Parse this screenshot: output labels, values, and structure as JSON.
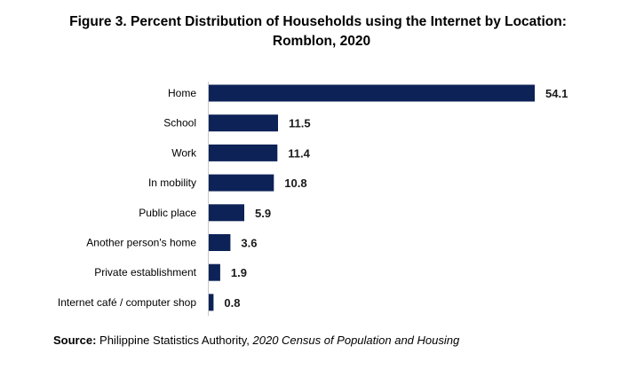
{
  "title_line1": "Figure 3. Percent Distribution of Households using the Internet by Location:",
  "title_line2": "Romblon, 2020",
  "source_label": "Source:",
  "source_org": "Philippine Statistics Authority,",
  "source_pub": "2020 Census of Population and Housing",
  "colors": {
    "bar": "#0d2257"
  },
  "chart_data": {
    "type": "bar",
    "orientation": "horizontal",
    "categories": [
      "Home",
      "School",
      "Work",
      "In mobility",
      "Public place",
      "Another person's home",
      "Private establishment",
      "Internet café / computer shop"
    ],
    "values": [
      54.1,
      11.5,
      11.4,
      10.8,
      5.9,
      3.6,
      1.9,
      0.8
    ],
    "value_labels": [
      "54.1",
      "11.5",
      "11.4",
      "10.8",
      "5.9",
      "3.6",
      "1.9",
      "0.8"
    ],
    "title": "Figure 3. Percent Distribution of Households using the Internet by Location: Romblon, 2020",
    "xlabel": "",
    "ylabel": "",
    "xlim": [
      0,
      54.1
    ],
    "grid": false,
    "legend": "none"
  }
}
